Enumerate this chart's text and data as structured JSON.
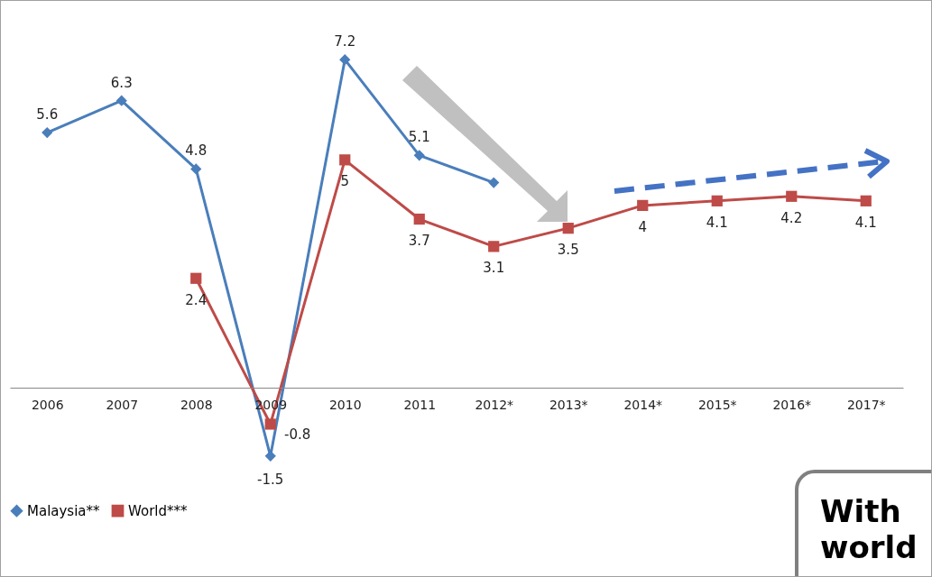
{
  "chart_data": {
    "type": "line",
    "categories": [
      "2006",
      "2007",
      "2008",
      "2009",
      "2010",
      "2011",
      "2012*",
      "2013*",
      "2014*",
      "2015*",
      "2016*",
      "2017*"
    ],
    "series": [
      {
        "name": "Malaysia**",
        "color": "#4a7ebb",
        "marker": "diamond",
        "values": [
          5.6,
          6.3,
          4.8,
          -1.5,
          7.2,
          5.1,
          4.5,
          null,
          null,
          null,
          null,
          null
        ],
        "value_labels": [
          "5.6",
          "6.3",
          "4.8",
          "-1.5",
          "7.2",
          "5.1",
          null,
          null,
          null,
          null,
          null,
          null
        ]
      },
      {
        "name": "World***",
        "color": "#be4b48",
        "marker": "square",
        "values": [
          null,
          null,
          2.4,
          -0.8,
          5,
          3.7,
          3.1,
          3.5,
          4,
          4.1,
          4.2,
          4.1
        ],
        "value_labels": [
          null,
          null,
          "2.4",
          "-0.8",
          "5",
          "3.7",
          "3.1",
          "3.5",
          "4",
          "4.1",
          "4.2",
          "4.1"
        ]
      }
    ],
    "legend": "bottom",
    "grid": false,
    "line_style": "solid",
    "annotations": [
      "With world"
    ]
  }
}
